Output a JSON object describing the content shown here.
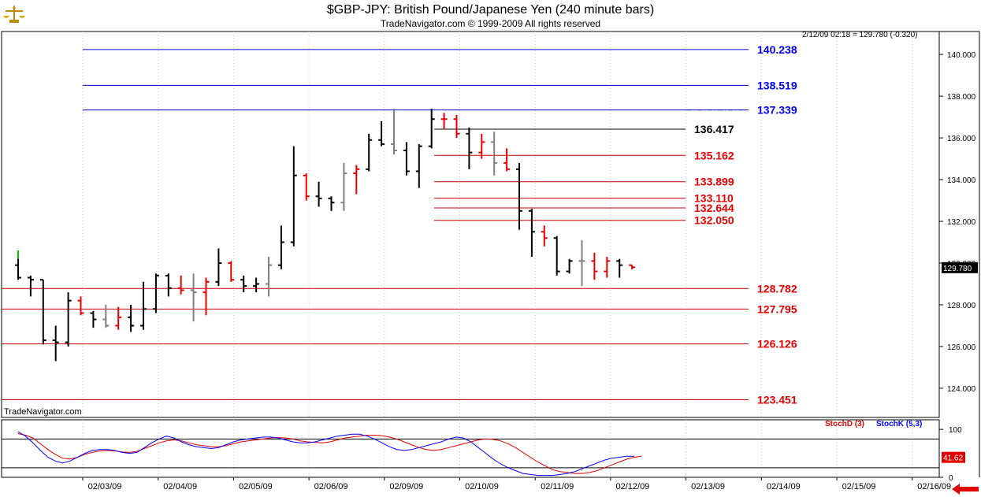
{
  "header": {
    "title": "$GBP-JPY:  British Pound/Japanese Yen  (240 minute bars)",
    "subtitle": "TradeNavigator.com © 1999-2009 All rights reserved",
    "last_info": "2/12/09 02:18 = 129.780 (-0.320)",
    "watermark": "TradeNavigator.com"
  },
  "icons": {
    "logo": "gold-scale-logo-icon",
    "navigate": "red-left-arrow-icon"
  },
  "colors": {
    "black": "#000000",
    "grey": "#808080",
    "red": "#e80000",
    "blue": "#0000ff",
    "fib_red": "#cc0000",
    "fib_blue": "#0000cc",
    "stoch_d": "#e00000",
    "stoch_k": "#0000ff"
  },
  "chart_data": [
    {
      "type": "ohlc",
      "title": "$GBP-JPY:  British Pound/Japanese Yen  (240 minute bars)",
      "ylim": [
        122.6,
        141.1
      ],
      "y_ticks": [
        "124.000",
        "126.000",
        "128.000",
        "130.000",
        "132.000",
        "134.000",
        "136.000",
        "138.000",
        "140.000"
      ],
      "x_tick_labels": [
        "02/03/09",
        "02/04/09",
        "02/05/09",
        "02/06/09",
        "02/09/09",
        "02/10/09",
        "02/11/09",
        "02/12/09",
        "02/13/09",
        "02/14/09",
        "02/15/09",
        "02/16/09"
      ],
      "last_price_label": "129.780",
      "grid": "vertical dotted",
      "bars": [
        {
          "o": 129.9,
          "h": 130.6,
          "l": 129.2,
          "c": 129.3,
          "col": "black"
        },
        {
          "o": 129.3,
          "h": 129.4,
          "l": 128.4,
          "c": 129.2,
          "col": "black"
        },
        {
          "o": 129.2,
          "h": 129.2,
          "l": 126.1,
          "c": 126.3,
          "col": "black"
        },
        {
          "o": 126.3,
          "h": 127.0,
          "l": 125.3,
          "c": 126.2,
          "col": "black"
        },
        {
          "o": 126.2,
          "h": 128.6,
          "l": 126.0,
          "c": 128.2,
          "col": "black"
        },
        {
          "o": 128.2,
          "h": 128.4,
          "l": 127.5,
          "c": 127.6,
          "col": "red"
        },
        {
          "o": 127.6,
          "h": 127.7,
          "l": 126.9,
          "c": 127.3,
          "col": "black"
        },
        {
          "o": 127.3,
          "h": 128.0,
          "l": 126.9,
          "c": 127.0,
          "col": "grey"
        },
        {
          "o": 127.0,
          "h": 127.9,
          "l": 126.8,
          "c": 127.4,
          "col": "red"
        },
        {
          "o": 127.4,
          "h": 128.0,
          "l": 126.7,
          "c": 127.0,
          "col": "black"
        },
        {
          "o": 127.0,
          "h": 129.1,
          "l": 126.8,
          "c": 127.8,
          "col": "black"
        },
        {
          "o": 127.8,
          "h": 129.5,
          "l": 127.6,
          "c": 129.4,
          "col": "black"
        },
        {
          "o": 129.4,
          "h": 129.5,
          "l": 128.4,
          "c": 128.8,
          "col": "black"
        },
        {
          "o": 128.8,
          "h": 129.4,
          "l": 128.5,
          "c": 128.7,
          "col": "red"
        },
        {
          "o": 128.7,
          "h": 129.5,
          "l": 127.2,
          "c": 128.6,
          "col": "grey"
        },
        {
          "o": 128.6,
          "h": 129.3,
          "l": 127.5,
          "c": 129.1,
          "col": "red"
        },
        {
          "o": 129.1,
          "h": 130.7,
          "l": 128.9,
          "c": 130.0,
          "col": "black"
        },
        {
          "o": 130.0,
          "h": 130.1,
          "l": 129.1,
          "c": 129.2,
          "col": "red"
        },
        {
          "o": 129.2,
          "h": 129.4,
          "l": 128.6,
          "c": 128.9,
          "col": "black"
        },
        {
          "o": 128.9,
          "h": 129.3,
          "l": 128.6,
          "c": 129.0,
          "col": "black"
        },
        {
          "o": 129.0,
          "h": 130.3,
          "l": 128.4,
          "c": 129.9,
          "col": "grey"
        },
        {
          "o": 129.9,
          "h": 131.8,
          "l": 129.7,
          "c": 131.0,
          "col": "black"
        },
        {
          "o": 131.0,
          "h": 135.6,
          "l": 130.8,
          "c": 134.2,
          "col": "black"
        },
        {
          "o": 134.2,
          "h": 134.3,
          "l": 133.0,
          "c": 133.2,
          "col": "red"
        },
        {
          "o": 133.2,
          "h": 133.9,
          "l": 132.7,
          "c": 133.1,
          "col": "black"
        },
        {
          "o": 133.1,
          "h": 133.2,
          "l": 132.5,
          "c": 132.9,
          "col": "black"
        },
        {
          "o": 132.9,
          "h": 134.8,
          "l": 132.5,
          "c": 134.3,
          "col": "grey"
        },
        {
          "o": 134.3,
          "h": 134.7,
          "l": 133.3,
          "c": 134.5,
          "col": "red"
        },
        {
          "o": 134.5,
          "h": 136.2,
          "l": 134.4,
          "c": 135.9,
          "col": "black"
        },
        {
          "o": 135.9,
          "h": 136.8,
          "l": 135.6,
          "c": 135.7,
          "col": "black"
        },
        {
          "o": 135.7,
          "h": 137.4,
          "l": 135.2,
          "c": 135.4,
          "col": "grey"
        },
        {
          "o": 135.4,
          "h": 135.8,
          "l": 134.2,
          "c": 134.4,
          "col": "black"
        },
        {
          "o": 134.4,
          "h": 135.7,
          "l": 133.6,
          "c": 135.6,
          "col": "black"
        },
        {
          "o": 135.6,
          "h": 137.4,
          "l": 135.5,
          "c": 136.9,
          "col": "black"
        },
        {
          "o": 136.9,
          "h": 137.2,
          "l": 136.4,
          "c": 136.9,
          "col": "red"
        },
        {
          "o": 136.9,
          "h": 137.1,
          "l": 136.0,
          "c": 136.2,
          "col": "red"
        },
        {
          "o": 136.2,
          "h": 136.5,
          "l": 134.5,
          "c": 135.3,
          "col": "black"
        },
        {
          "o": 135.3,
          "h": 136.2,
          "l": 135.0,
          "c": 135.8,
          "col": "red"
        },
        {
          "o": 135.8,
          "h": 136.3,
          "l": 134.2,
          "c": 134.8,
          "col": "grey"
        },
        {
          "o": 134.8,
          "h": 135.5,
          "l": 134.4,
          "c": 134.5,
          "col": "red"
        },
        {
          "o": 134.5,
          "h": 134.8,
          "l": 131.6,
          "c": 132.5,
          "col": "black"
        },
        {
          "o": 132.5,
          "h": 132.6,
          "l": 130.3,
          "c": 131.5,
          "col": "black"
        },
        {
          "o": 131.5,
          "h": 131.8,
          "l": 130.8,
          "c": 131.2,
          "col": "red"
        },
        {
          "o": 131.2,
          "h": 131.3,
          "l": 129.4,
          "c": 129.6,
          "col": "black"
        },
        {
          "o": 129.6,
          "h": 130.2,
          "l": 129.5,
          "c": 130.1,
          "col": "black"
        },
        {
          "o": 130.1,
          "h": 131.1,
          "l": 128.9,
          "c": 130.1,
          "col": "grey"
        },
        {
          "o": 130.1,
          "h": 130.5,
          "l": 129.2,
          "c": 129.6,
          "col": "red"
        },
        {
          "o": 129.6,
          "h": 130.3,
          "l": 129.3,
          "c": 130.1,
          "col": "red"
        },
        {
          "o": 130.1,
          "h": 130.2,
          "l": 129.3,
          "c": 129.9,
          "col": "black"
        },
        {
          "o": 129.9,
          "h": 129.9,
          "l": 129.7,
          "c": 129.8,
          "col": "red"
        }
      ],
      "levels": [
        {
          "value": 140.238,
          "label": "140.238",
          "color": "blue",
          "span": "long"
        },
        {
          "value": 138.519,
          "label": "138.519",
          "color": "blue",
          "span": "long"
        },
        {
          "value": 137.339,
          "label": "137.339",
          "color": "blue",
          "span": "long"
        },
        {
          "value": 136.417,
          "label": "136.417",
          "color": "black",
          "span": "short"
        },
        {
          "value": 135.162,
          "label": "135.162",
          "color": "red",
          "span": "short"
        },
        {
          "value": 133.899,
          "label": "133.899",
          "color": "red",
          "span": "short"
        },
        {
          "value": 133.11,
          "label": "133.110",
          "color": "red",
          "span": "short"
        },
        {
          "value": 132.644,
          "label": "132.644",
          "color": "red",
          "span": "short"
        },
        {
          "value": 132.05,
          "label": "132.050",
          "color": "red",
          "span": "short"
        },
        {
          "value": 128.782,
          "label": "128.782",
          "color": "red",
          "span": "full"
        },
        {
          "value": 127.795,
          "label": "127.795",
          "color": "red",
          "span": "full"
        },
        {
          "value": 126.126,
          "label": "126.126",
          "color": "red",
          "span": "full"
        },
        {
          "value": 123.451,
          "label": "123.451",
          "color": "red",
          "span": "full"
        }
      ]
    },
    {
      "type": "line",
      "title": "",
      "ylim": [
        0,
        120
      ],
      "y_ticks": [
        "100",
        "0"
      ],
      "hlines": [
        80,
        20
      ],
      "last_value_label": "41.62",
      "series": [
        {
          "name": "StochD (3)",
          "color": "red",
          "values": [
            91,
            88,
            82,
            70,
            58,
            48,
            40,
            38,
            42,
            48,
            52,
            55,
            56,
            55,
            53,
            52,
            54,
            60,
            66,
            72,
            76,
            78,
            76,
            72,
            68,
            66,
            64,
            64,
            66,
            70,
            74,
            76,
            78,
            80,
            82,
            83,
            82,
            80,
            76,
            74,
            73,
            72,
            74,
            78,
            82,
            84,
            86,
            88,
            88,
            87,
            84,
            80,
            74,
            68,
            62,
            58,
            56,
            58,
            62,
            66,
            70,
            74,
            78,
            80,
            79,
            76,
            70,
            62,
            52,
            42,
            32,
            24,
            16,
            12,
            10,
            8,
            8,
            10,
            14,
            20,
            26,
            32,
            38,
            42,
            44
          ]
        },
        {
          "name": "StochK (5,3)",
          "color": "blue",
          "values": [
            95,
            86,
            72,
            56,
            42,
            34,
            30,
            34,
            42,
            50,
            56,
            58,
            58,
            56,
            52,
            50,
            52,
            62,
            72,
            80,
            86,
            82,
            74,
            68,
            64,
            62,
            60,
            62,
            68,
            74,
            78,
            80,
            82,
            84,
            84,
            82,
            78,
            74,
            72,
            72,
            74,
            78,
            82,
            86,
            88,
            90,
            90,
            86,
            80,
            72,
            64,
            58,
            56,
            58,
            62,
            66,
            70,
            74,
            80,
            84,
            82,
            74,
            62,
            50,
            38,
            28,
            20,
            14,
            8,
            6,
            4,
            4,
            4,
            6,
            8,
            12,
            18,
            24,
            30,
            36,
            40,
            42,
            44,
            44
          ]
        }
      ]
    }
  ]
}
